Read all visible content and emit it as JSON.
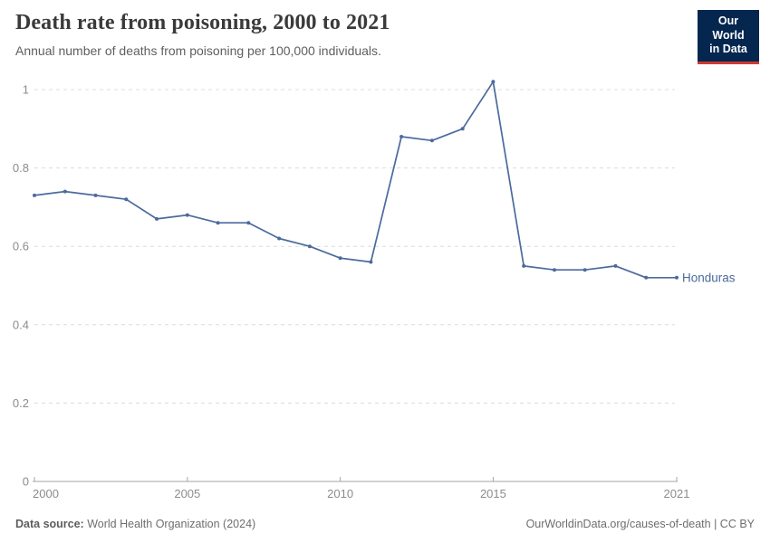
{
  "header": {
    "title": "Death rate from poisoning, 2000 to 2021",
    "subtitle": "Annual number of deaths from poisoning per 100,000 individuals.",
    "logo": {
      "line1": "Our World",
      "line2": "in Data"
    }
  },
  "chart_data": {
    "type": "line",
    "title": "Death rate from poisoning, 2000 to 2021",
    "xlabel": "",
    "ylabel": "Annual number of deaths from poisoning per 100,000 individuals",
    "xlim": [
      2000,
      2021
    ],
    "ylim": [
      0,
      1.05
    ],
    "grid": "horizontal-dashed",
    "legend_position": "end-of-line",
    "x_ticks": [
      2000,
      2005,
      2010,
      2015,
      2021
    ],
    "y_ticks": [
      0,
      0.2,
      0.4,
      0.6,
      0.8,
      1
    ],
    "x": [
      2000,
      2001,
      2002,
      2003,
      2004,
      2005,
      2006,
      2007,
      2008,
      2009,
      2010,
      2011,
      2012,
      2013,
      2014,
      2015,
      2016,
      2017,
      2018,
      2019,
      2020,
      2021
    ],
    "series": [
      {
        "name": "Honduras",
        "color": "#4C6A9C",
        "values": [
          0.73,
          0.74,
          0.73,
          0.72,
          0.67,
          0.68,
          0.66,
          0.66,
          0.62,
          0.6,
          0.57,
          0.56,
          0.88,
          0.87,
          0.9,
          1.02,
          0.55,
          0.54,
          0.54,
          0.55,
          0.52,
          0.52
        ]
      }
    ]
  },
  "footer": {
    "source_label": "Data source:",
    "source_text": " World Health Organization (2024)",
    "credit": "OurWorldinData.org/causes-of-death | CC BY"
  },
  "colors": {
    "line": "#4C6A9C",
    "grid": "#DCDCDC",
    "axis": "#A6A6A6",
    "tick_label": "#8C8C8C",
    "logo_bg": "#04264F",
    "logo_red": "#CC3B33"
  }
}
